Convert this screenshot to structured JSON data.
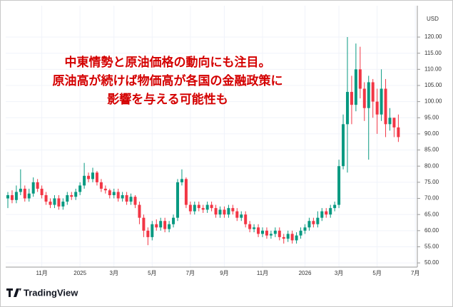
{
  "chart_data": {
    "type": "candlestick",
    "annotation": [
      "中東情勢と原油価格の動向にも注目。",
      "原油高が続けば物価高が各国の金融政策に",
      "影響を与える可能性も"
    ],
    "currency": "USD",
    "logo": "TradingView",
    "up_color": "#089981",
    "down_color": "#f23645",
    "grid": true,
    "categories": [
      null,
      null,
      null,
      null,
      null,
      null,
      null,
      null,
      "11月",
      null,
      null,
      null,
      null,
      null,
      null,
      null,
      null,
      "2025",
      null,
      null,
      null,
      null,
      null,
      null,
      null,
      "3月",
      null,
      null,
      null,
      null,
      null,
      null,
      null,
      null,
      "5月",
      null,
      null,
      null,
      null,
      null,
      null,
      null,
      null,
      "7月",
      null,
      null,
      null,
      null,
      null,
      null,
      null,
      "9月",
      null,
      null,
      null,
      null,
      null,
      null,
      null,
      null,
      "11月",
      null,
      null,
      null,
      null,
      null,
      null,
      null,
      null,
      null,
      "2026",
      null,
      null,
      null,
      null,
      null,
      null,
      null,
      "3月",
      null,
      null,
      null,
      null,
      null,
      null,
      null,
      null,
      "5月",
      null,
      null,
      null,
      null,
      null,
      null,
      null,
      null,
      "7月"
    ],
    "open": [
      70,
      71,
      69.5,
      72,
      73,
      70,
      71.5,
      75,
      73,
      71,
      69,
      68,
      70,
      67.5,
      69,
      71,
      70.5,
      72,
      74,
      77,
      76,
      78,
      75,
      73,
      72.5,
      71,
      72,
      70,
      71,
      69,
      70.5,
      68,
      64,
      60,
      58,
      62,
      61,
      63,
      60.5,
      62,
      64,
      75,
      76,
      68,
      66,
      68,
      67,
      66.5,
      68,
      67,
      65,
      66.5,
      65,
      67,
      66,
      64,
      65,
      62,
      60.5,
      61,
      59,
      60,
      58.5,
      59,
      60,
      58,
      57.5,
      59,
      57,
      58.5,
      60,
      61,
      63,
      62,
      64,
      66,
      65,
      67,
      68,
      80,
      93,
      103,
      99,
      110,
      104,
      98,
      106,
      100,
      96,
      104,
      93,
      95,
      92,
      null,
      null,
      null,
      null
    ],
    "high": [
      72,
      72.5,
      74,
      79,
      74,
      73,
      76.5,
      76,
      74,
      72,
      70,
      71,
      71,
      70,
      72,
      72,
      73,
      75,
      81,
      78,
      79.5,
      78.5,
      76,
      74,
      73,
      73,
      73,
      72,
      72,
      71.5,
      71,
      69,
      65,
      61,
      63,
      63.5,
      64,
      64,
      63,
      65,
      76,
      79,
      76.5,
      69,
      69,
      69,
      68,
      69,
      69,
      68,
      67.5,
      67.5,
      68,
      68,
      67,
      66,
      66,
      63,
      62,
      62,
      61,
      61,
      60,
      61,
      61,
      59,
      60,
      60,
      59.5,
      61,
      62,
      64,
      64,
      66,
      67,
      67,
      68,
      69,
      82,
      96,
      120,
      108,
      118,
      117,
      106,
      108,
      107,
      104,
      110,
      107,
      98,
      95,
      96,
      null,
      null,
      null,
      null
    ],
    "low": [
      67,
      68.5,
      68.5,
      71,
      69,
      69,
      70.5,
      72,
      70,
      68,
      67,
      67,
      66.5,
      66.5,
      68,
      69.5,
      69.5,
      71,
      73,
      75,
      75,
      74,
      72,
      71.5,
      70,
      70,
      69,
      69,
      68,
      68,
      67,
      62,
      58,
      55.5,
      57,
      60,
      60,
      59.5,
      59.5,
      61,
      63,
      74,
      67,
      65,
      65,
      66,
      65.5,
      65.5,
      66,
      64,
      64,
      64,
      64,
      65,
      63,
      63,
      61,
      59.5,
      59.5,
      58,
      58,
      57.5,
      57.5,
      58,
      57,
      56,
      56.5,
      56,
      56,
      57.5,
      59,
      60,
      61,
      61,
      63,
      64,
      64,
      66,
      67,
      79,
      78,
      93,
      97,
      101,
      94,
      82,
      95,
      90,
      94,
      89,
      91,
      89,
      87.5,
      null,
      null,
      null,
      null
    ],
    "close": [
      71,
      69.5,
      72,
      73,
      70,
      71.5,
      75,
      73,
      71,
      69,
      68,
      70,
      67.5,
      69,
      71,
      70.5,
      72,
      74,
      77,
      76,
      78,
      75,
      73,
      72.5,
      71,
      72,
      70,
      71,
      69,
      70.5,
      68,
      64,
      60,
      58,
      62,
      61,
      63,
      60.5,
      62,
      64,
      75,
      76,
      68,
      66,
      68,
      67,
      66.5,
      68,
      67,
      65,
      66.5,
      65,
      67,
      66,
      64,
      65,
      62,
      60.5,
      61,
      59,
      60,
      58.5,
      59,
      60,
      58,
      57.5,
      59,
      57,
      58.5,
      60,
      61,
      63,
      62,
      64,
      66,
      65,
      67,
      68,
      80,
      93,
      103,
      99,
      110,
      104,
      98,
      106,
      100,
      96,
      104,
      93,
      95,
      92,
      89,
      null,
      null,
      null,
      null
    ],
    "ylim": [
      48.7,
      128.4
    ],
    "yticks": [
      {
        "value": 50,
        "label": "50.00"
      },
      {
        "value": 55,
        "label": "55.00"
      },
      {
        "value": 60,
        "label": "60.00"
      },
      {
        "value": 65,
        "label": "65.00"
      },
      {
        "value": 70,
        "label": "70.00"
      },
      {
        "value": 75,
        "label": "75.00"
      },
      {
        "value": 80,
        "label": "80.00"
      },
      {
        "value": 85,
        "label": "85.00"
      },
      {
        "value": 90,
        "label": "90.00"
      },
      {
        "value": 95,
        "label": "95.00"
      },
      {
        "value": 100,
        "label": "100.00"
      },
      {
        "value": 105,
        "label": "105.00"
      },
      {
        "value": 110,
        "label": "110.00"
      },
      {
        "value": 115,
        "label": "115.00"
      },
      {
        "value": 120,
        "label": "120.00"
      }
    ]
  }
}
